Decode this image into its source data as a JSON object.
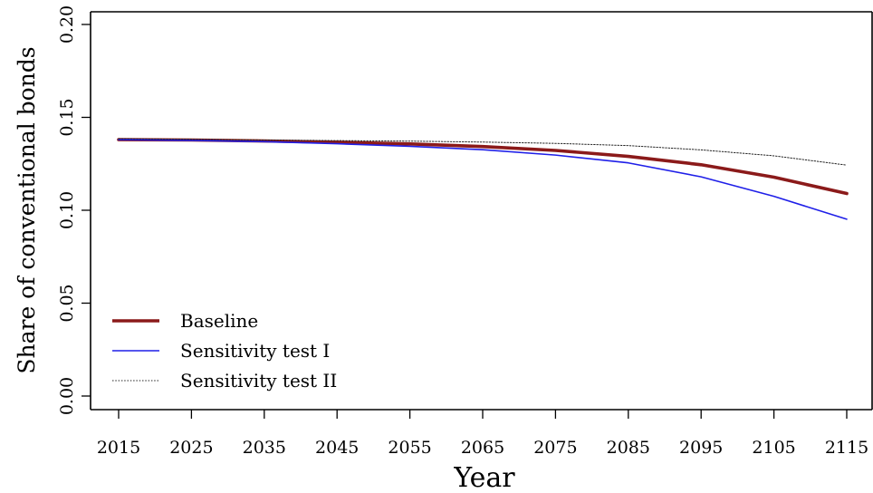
{
  "chart_data": {
    "type": "line",
    "xlabel": "Year",
    "ylabel": "Share of conventional bonds",
    "xlim": [
      2015,
      2115
    ],
    "ylim": [
      0,
      0.2
    ],
    "xticks": [
      "2015",
      "2025",
      "2035",
      "2045",
      "2055",
      "2065",
      "2075",
      "2085",
      "2095",
      "2105",
      "2115"
    ],
    "yticks": [
      "0.00",
      "0.05",
      "0.10",
      "0.15",
      "0.20"
    ],
    "grid": false,
    "legend_position": "bottom-left",
    "x": [
      2015,
      2025,
      2035,
      2045,
      2055,
      2065,
      2075,
      2085,
      2095,
      2105,
      2115
    ],
    "series": [
      {
        "name": "Baseline",
        "color": "#8B1A1A",
        "style": "solid-thick",
        "values": [
          0.138,
          0.1378,
          0.1373,
          0.1366,
          0.1357,
          0.1343,
          0.1322,
          0.129,
          0.1245,
          0.1178,
          0.109
        ]
      },
      {
        "name": "Sensitivity test I",
        "color": "#1F1FE8",
        "style": "solid-thin",
        "values": [
          0.138,
          0.1376,
          0.1369,
          0.1358,
          0.1344,
          0.1326,
          0.1297,
          0.1255,
          0.118,
          0.1075,
          0.0952
        ]
      },
      {
        "name": "Sensitivity test II",
        "color": "#222222",
        "style": "dotted",
        "values": [
          0.1385,
          0.1382,
          0.1378,
          0.1375,
          0.1372,
          0.1367,
          0.136,
          0.1348,
          0.1325,
          0.1293,
          0.1243
        ]
      }
    ]
  }
}
